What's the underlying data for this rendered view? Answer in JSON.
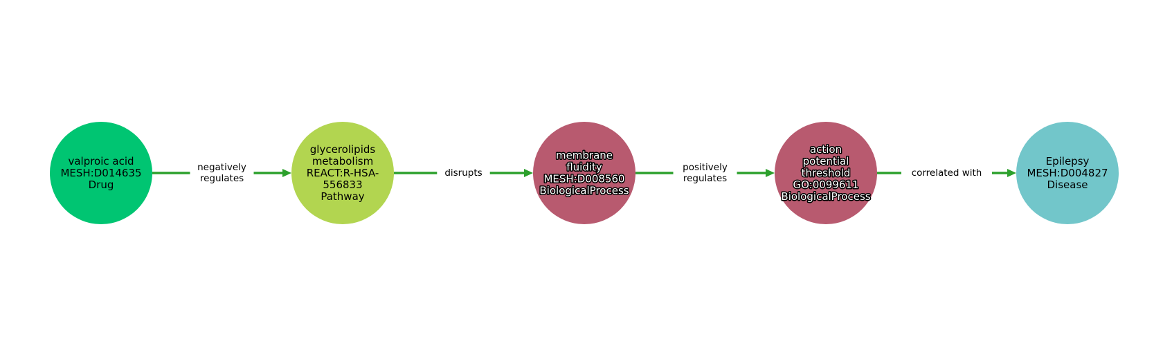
{
  "nodes": [
    {
      "id": "n1",
      "lines": [
        "valproic acid",
        "MESH:D014635",
        "Drug"
      ],
      "color": "#00c572",
      "halo": false
    },
    {
      "id": "n2",
      "lines": [
        "glycerolipids",
        "metabolism",
        "REACT:R-HSA-",
        "556833",
        "Pathway"
      ],
      "color": "#b2d550",
      "halo": false
    },
    {
      "id": "n3",
      "lines": [
        "membrane",
        "fluidity",
        "MESH:D008560",
        "BiologicalProcess"
      ],
      "color": "#b85a6f",
      "halo": true
    },
    {
      "id": "n4",
      "lines": [
        "action",
        "potential",
        "threshold",
        "GO:0099611",
        "BiologicalProcess"
      ],
      "color": "#b85a6f",
      "halo": true
    },
    {
      "id": "n5",
      "lines": [
        "Epilepsy",
        "MESH:D004827",
        "Disease"
      ],
      "color": "#72c6ca",
      "halo": false
    }
  ],
  "edges": [
    {
      "source": "n1",
      "target": "n2",
      "label_lines": [
        "negatively",
        "regulates"
      ]
    },
    {
      "source": "n2",
      "target": "n3",
      "label_lines": [
        "disrupts"
      ]
    },
    {
      "source": "n3",
      "target": "n4",
      "label_lines": [
        "positively",
        "regulates"
      ]
    },
    {
      "source": "n4",
      "target": "n5",
      "label_lines": [
        "correlated with"
      ]
    }
  ],
  "edge_color": "#2ca02c"
}
